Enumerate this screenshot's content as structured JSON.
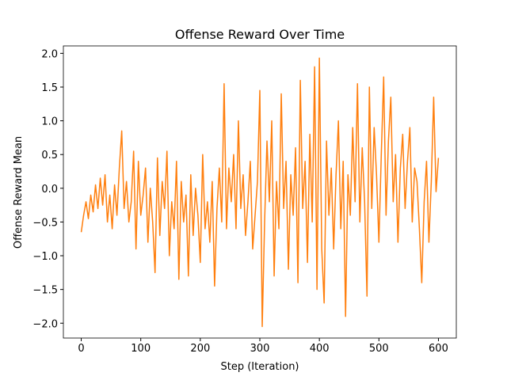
{
  "chart_data": {
    "type": "line",
    "title": "Offense Reward Over Time",
    "x_label": "Step (Iteration)",
    "y_label": "Offense Reward Mean",
    "xlim": [
      -30,
      630
    ],
    "ylim": [
      -2.22,
      2.11
    ],
    "xticks": [
      0,
      100,
      200,
      300,
      400,
      500,
      600
    ],
    "yticks": [
      {
        "value": -2.0,
        "label": "−2.0"
      },
      {
        "value": -1.5,
        "label": "−1.5"
      },
      {
        "value": -1.0,
        "label": "−1.0"
      },
      {
        "value": -0.5,
        "label": "−0.5"
      },
      {
        "value": 0.0,
        "label": "0.0"
      },
      {
        "value": 0.5,
        "label": "0.5"
      },
      {
        "value": 1.0,
        "label": "1.0"
      },
      {
        "value": 1.5,
        "label": "1.5"
      },
      {
        "value": 2.0,
        "label": "2.0"
      }
    ],
    "grid": false,
    "x": [
      0,
      4,
      8,
      12,
      16,
      20,
      24,
      28,
      32,
      36,
      40,
      44,
      48,
      52,
      56,
      60,
      64,
      68,
      72,
      76,
      80,
      84,
      88,
      92,
      96,
      100,
      104,
      108,
      112,
      116,
      120,
      124,
      128,
      132,
      136,
      140,
      144,
      148,
      152,
      156,
      160,
      164,
      168,
      172,
      176,
      180,
      184,
      188,
      192,
      196,
      200,
      204,
      208,
      212,
      216,
      220,
      224,
      228,
      232,
      236,
      240,
      244,
      248,
      252,
      256,
      260,
      264,
      268,
      272,
      276,
      280,
      284,
      288,
      292,
      296,
      300,
      304,
      308,
      312,
      316,
      320,
      324,
      328,
      332,
      336,
      340,
      344,
      348,
      352,
      356,
      360,
      364,
      368,
      372,
      376,
      380,
      384,
      388,
      392,
      396,
      400,
      404,
      408,
      412,
      416,
      420,
      424,
      428,
      432,
      436,
      440,
      444,
      448,
      452,
      456,
      460,
      464,
      468,
      472,
      476,
      480,
      484,
      488,
      492,
      496,
      500,
      504,
      508,
      512,
      516,
      520,
      524,
      528,
      532,
      536,
      540,
      544,
      548,
      552,
      556,
      560,
      564,
      568,
      572,
      576,
      580,
      584,
      588,
      592,
      596,
      600
    ],
    "series": [
      {
        "color": "#ff7f0e",
        "values": [
          -0.65,
          -0.4,
          -0.2,
          -0.45,
          -0.1,
          -0.35,
          0.05,
          -0.3,
          0.15,
          -0.25,
          0.2,
          -0.5,
          -0.1,
          -0.6,
          0.05,
          -0.4,
          0.3,
          0.85,
          -0.3,
          0.1,
          -0.5,
          -0.2,
          0.55,
          -0.9,
          0.4,
          -0.4,
          -0.1,
          0.3,
          -0.8,
          0.0,
          -0.5,
          -1.25,
          0.45,
          -0.7,
          0.1,
          -0.3,
          0.55,
          -1.0,
          -0.2,
          -0.6,
          0.4,
          -1.35,
          0.1,
          -0.5,
          -0.1,
          -1.3,
          0.2,
          -0.7,
          0.0,
          -0.4,
          -1.1,
          0.5,
          -0.6,
          -0.2,
          -0.8,
          0.1,
          -1.45,
          -0.3,
          0.3,
          -0.5,
          1.55,
          -0.6,
          0.3,
          -0.2,
          0.5,
          -0.6,
          1.0,
          -0.3,
          0.2,
          -0.7,
          -0.2,
          0.4,
          -0.9,
          -0.4,
          0.1,
          1.45,
          -2.05,
          -0.5,
          0.7,
          -0.2,
          1.0,
          -1.3,
          0.1,
          -0.6,
          1.4,
          -0.3,
          0.4,
          -1.2,
          0.2,
          -0.4,
          0.6,
          -1.4,
          1.6,
          -0.3,
          0.4,
          -1.1,
          0.8,
          -0.5,
          1.8,
          -1.5,
          1.93,
          -0.9,
          -1.7,
          0.7,
          -0.4,
          0.3,
          -0.9,
          0.2,
          1.0,
          -0.6,
          0.4,
          -1.9,
          0.2,
          -0.4,
          0.9,
          -0.2,
          1.55,
          -0.5,
          0.6,
          -0.2,
          -1.6,
          1.5,
          -0.3,
          0.9,
          0.2,
          -0.8,
          0.5,
          1.65,
          -0.4,
          0.7,
          1.35,
          -0.2,
          0.5,
          -0.8,
          0.3,
          0.8,
          -0.3,
          0.4,
          0.9,
          -0.5,
          0.3,
          0.1,
          -0.6,
          -1.4,
          -0.2,
          0.4,
          -0.8,
          0.1,
          1.35,
          -0.05,
          0.45
        ]
      }
    ]
  }
}
